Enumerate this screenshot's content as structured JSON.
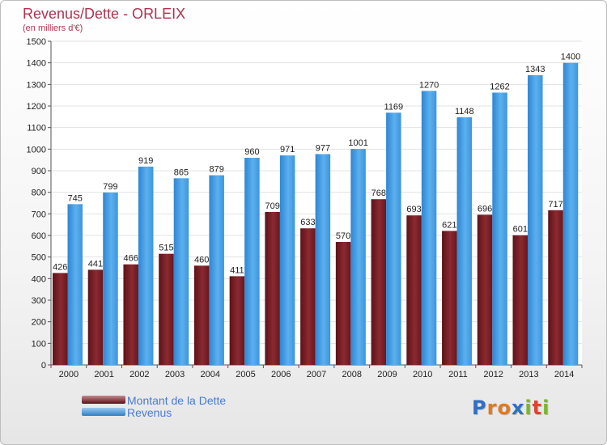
{
  "chart_data": {
    "type": "bar",
    "title": "Revenus/Dette - ORLEIX",
    "subtitle": "(en milliers d'€)",
    "categories": [
      "2000",
      "2001",
      "2002",
      "2003",
      "2004",
      "2005",
      "2006",
      "2007",
      "2008",
      "2009",
      "2010",
      "2011",
      "2012",
      "2013",
      "2014"
    ],
    "series": [
      {
        "name": "Montant de la Dette",
        "color": "#7a1c22",
        "values": [
          426,
          441,
          466,
          515,
          460,
          411,
          709,
          633,
          570,
          768,
          693,
          621,
          696,
          601,
          717
        ]
      },
      {
        "name": "Revenus",
        "color": "#3d95dc",
        "values": [
          745,
          799,
          919,
          865,
          879,
          960,
          971,
          977,
          1001,
          1169,
          1270,
          1148,
          1262,
          1343,
          1400
        ]
      }
    ],
    "ylim": [
      0,
      1500
    ],
    "y_ticks": [
      0,
      100,
      200,
      300,
      400,
      500,
      600,
      700,
      800,
      900,
      1000,
      1100,
      1200,
      1300,
      1400,
      1500
    ],
    "grid": true,
    "legend_position": "bottom-left"
  },
  "brand": {
    "letters": [
      "P",
      "r",
      "o",
      "x",
      "i",
      "t",
      "i"
    ],
    "colors": [
      "#2f6fc4",
      "#e07a1e",
      "#e07a1e",
      "#2f6fc4",
      "#7bb52e",
      "#e2442f",
      "#7bb52e"
    ]
  }
}
